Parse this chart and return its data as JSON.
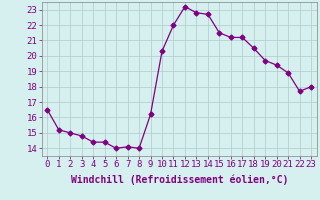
{
  "x": [
    0,
    1,
    2,
    3,
    4,
    5,
    6,
    7,
    8,
    9,
    10,
    11,
    12,
    13,
    14,
    15,
    16,
    17,
    18,
    19,
    20,
    21,
    22,
    23
  ],
  "y": [
    16.5,
    15.2,
    15.0,
    14.8,
    14.4,
    14.4,
    14.0,
    14.1,
    14.0,
    16.2,
    20.3,
    22.0,
    23.2,
    22.8,
    22.7,
    21.5,
    21.2,
    21.2,
    20.5,
    19.7,
    19.4,
    18.9,
    17.7,
    18.0
  ],
  "line_color": "#800080",
  "marker": "D",
  "marker_size": 2.5,
  "bg_color": "#d6f0f0",
  "grid_color": "#b0c8c8",
  "xlabel": "Windchill (Refroidissement éolien,°C)",
  "xlabel_fontsize": 7,
  "tick_fontsize": 6.5,
  "ylim": [
    13.5,
    23.5
  ],
  "xlim": [
    -0.5,
    23.5
  ],
  "yticks": [
    14,
    15,
    16,
    17,
    18,
    19,
    20,
    21,
    22,
    23
  ],
  "xticks": [
    0,
    1,
    2,
    3,
    4,
    5,
    6,
    7,
    8,
    9,
    10,
    11,
    12,
    13,
    14,
    15,
    16,
    17,
    18,
    19,
    20,
    21,
    22,
    23
  ]
}
